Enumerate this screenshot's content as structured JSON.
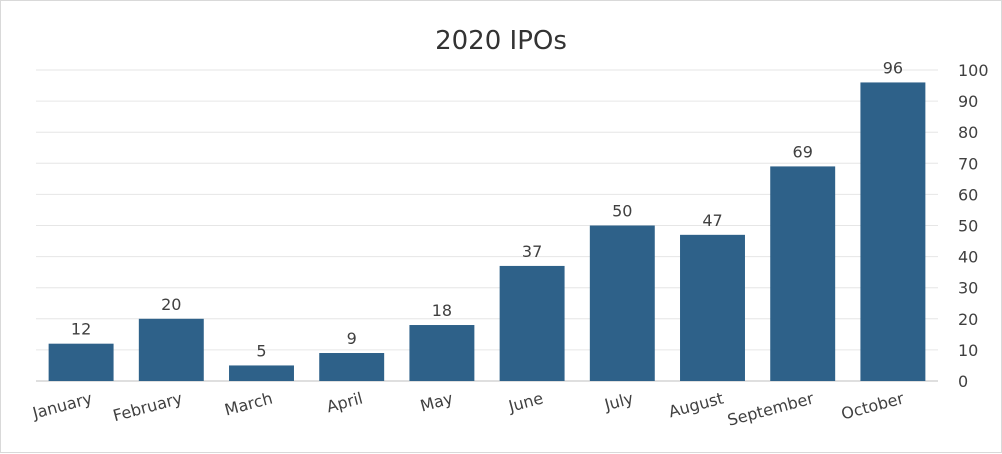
{
  "chart_data": {
    "type": "bar",
    "title": "2020 IPOs",
    "xlabel": "",
    "ylabel": "",
    "categories": [
      "January",
      "February",
      "March",
      "April",
      "May",
      "June",
      "July",
      "August",
      "September",
      "October"
    ],
    "values": [
      12,
      20,
      5,
      9,
      18,
      37,
      50,
      47,
      69,
      96
    ],
    "ylim": [
      0,
      100
    ],
    "yticks": [
      0,
      10,
      20,
      30,
      40,
      50,
      60,
      70,
      80,
      90,
      100
    ],
    "y_axis_side": "right",
    "grid": true,
    "data_labels": true,
    "bar_color": "#2e6189"
  }
}
